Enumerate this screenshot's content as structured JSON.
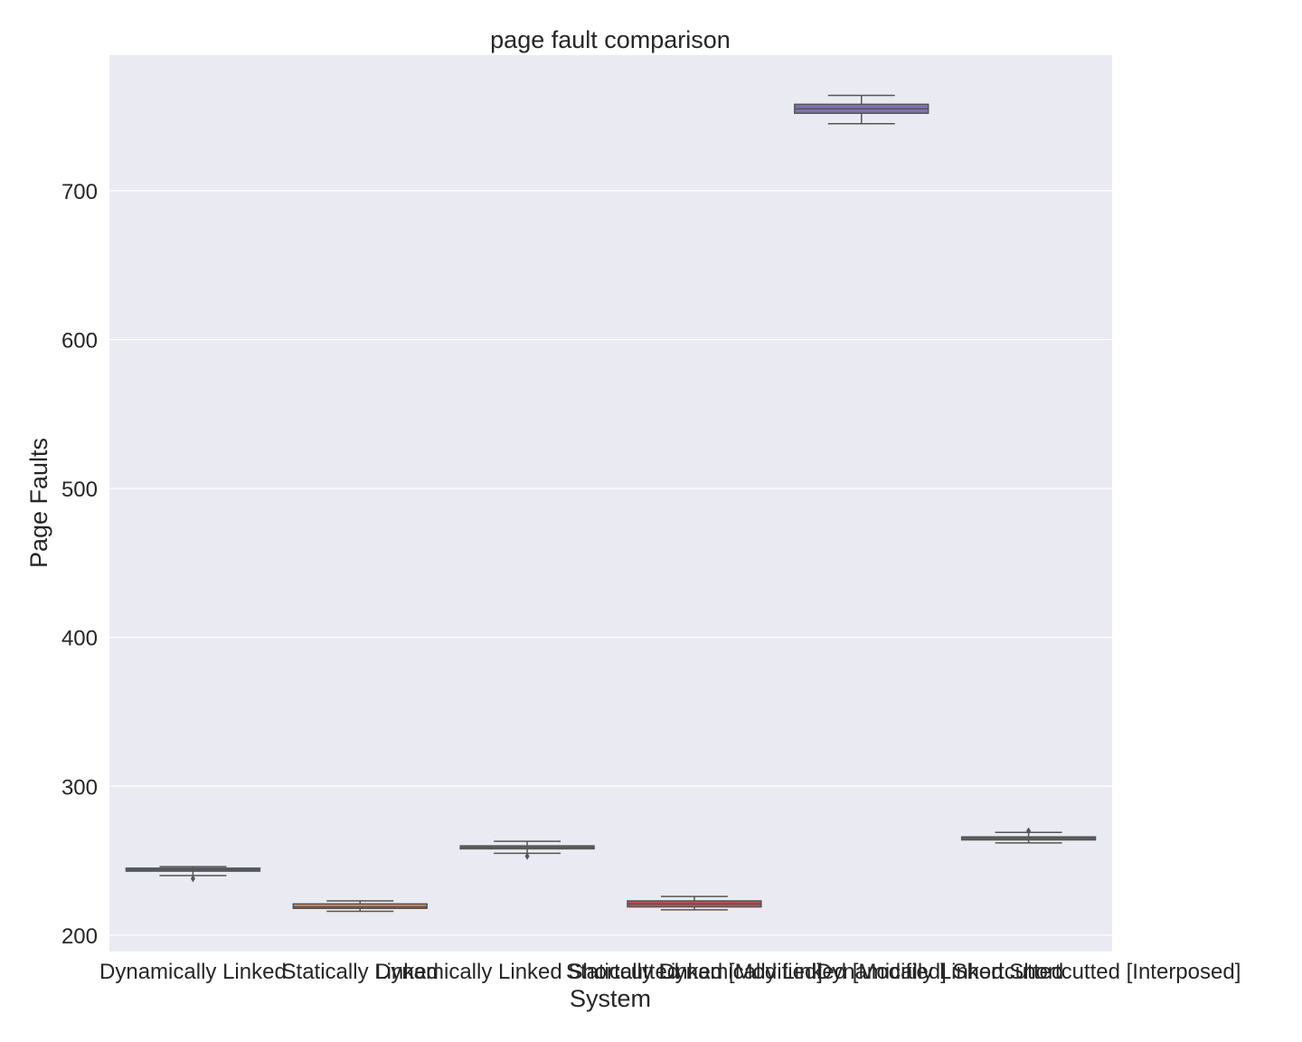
{
  "chart_data": {
    "type": "box",
    "title": "page fault comparison",
    "xlabel": "System",
    "ylabel": "Page Faults",
    "ylim": [
      189,
      791
    ],
    "yticks": [
      200,
      300,
      400,
      500,
      600,
      700
    ],
    "grid": true,
    "background": "#eaeaf2",
    "categories": [
      "Dynamically Linked",
      "Statically Linked",
      "Dynamically Linked Shortcutted",
      "Statically Linked [Modified]",
      "Dynamically Linked [Modified] Shortcutted",
      "Dynamically Linked Shortcutted [Interposed]"
    ],
    "boxes": [
      {
        "name": "Dynamically Linked",
        "whisker_low": 240,
        "q1": 243,
        "median": 244,
        "q3": 245,
        "whisker_high": 246,
        "outliers": [
          238
        ],
        "color": "#4c72b0"
      },
      {
        "name": "Statically Linked",
        "whisker_low": 216,
        "q1": 218,
        "median": 219,
        "q3": 221,
        "whisker_high": 223,
        "outliers": [],
        "color": "#dd8452"
      },
      {
        "name": "Dynamically Linked Shortcutted",
        "whisker_low": 255,
        "q1": 258,
        "median": 259,
        "q3": 260,
        "whisker_high": 263,
        "outliers": [
          253
        ],
        "color": "#55a868"
      },
      {
        "name": "Statically Linked [Modified]",
        "whisker_low": 217,
        "q1": 219,
        "median": 221,
        "q3": 223,
        "whisker_high": 226,
        "outliers": [],
        "color": "#c44e52"
      },
      {
        "name": "Dynamically Linked [Modified] Shortcutted",
        "whisker_low": 745,
        "q1": 752,
        "median": 755,
        "q3": 758,
        "whisker_high": 764,
        "outliers": [],
        "color": "#8172b3"
      },
      {
        "name": "Dynamically Linked Shortcutted [Interposed]",
        "whisker_low": 262,
        "q1": 264,
        "median": 265,
        "q3": 266,
        "whisker_high": 269,
        "outliers": [
          270
        ],
        "color": "#937860"
      }
    ]
  }
}
